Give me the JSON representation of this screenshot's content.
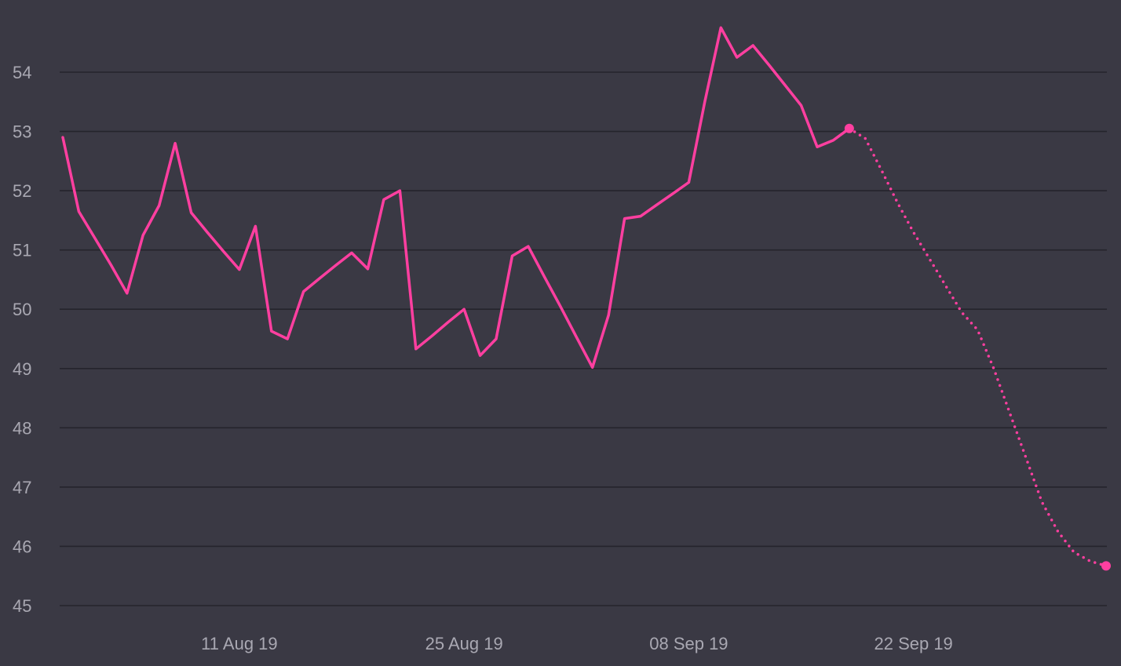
{
  "colors": {
    "background": "#3a3944",
    "series": "#ff3fa0",
    "grid": "#25242c",
    "tick_text": "#a9a8b2"
  },
  "chart_data": {
    "type": "line",
    "title": "",
    "xlabel": "",
    "ylabel": "",
    "ylim": [
      45,
      54.9
    ],
    "xlim": [
      "2019-07-31",
      "2019-10-04"
    ],
    "grid": true,
    "y_ticks": [
      "45",
      "46",
      "47",
      "48",
      "49",
      "50",
      "51",
      "52",
      "53",
      "54"
    ],
    "x_ticks": [
      {
        "date": "2019-08-11",
        "label": "11 Aug 19"
      },
      {
        "date": "2019-08-25",
        "label": "25 Aug 19"
      },
      {
        "date": "2019-09-08",
        "label": "08 Sep 19"
      },
      {
        "date": "2019-09-22",
        "label": "22 Sep 19"
      }
    ],
    "series": [
      {
        "style": "solid",
        "points": [
          [
            "2019-07-31",
            52.9
          ],
          [
            "2019-08-01",
            51.65
          ],
          [
            "2019-08-02",
            51.2
          ],
          [
            "2019-08-03",
            50.75
          ],
          [
            "2019-08-04",
            50.27
          ],
          [
            "2019-08-05",
            51.25
          ],
          [
            "2019-08-06",
            51.75
          ],
          [
            "2019-08-07",
            52.8
          ],
          [
            "2019-08-08",
            51.63
          ],
          [
            "2019-08-09",
            51.3
          ],
          [
            "2019-08-10",
            50.98
          ],
          [
            "2019-08-11",
            50.67
          ],
          [
            "2019-08-12",
            51.4
          ],
          [
            "2019-08-13",
            49.63
          ],
          [
            "2019-08-14",
            49.5
          ],
          [
            "2019-08-15",
            50.3
          ],
          [
            "2019-08-16",
            50.52
          ],
          [
            "2019-08-17",
            50.74
          ],
          [
            "2019-08-18",
            50.95
          ],
          [
            "2019-08-19",
            50.68
          ],
          [
            "2019-08-20",
            51.85
          ],
          [
            "2019-08-21",
            52.0
          ],
          [
            "2019-08-22",
            49.33
          ],
          [
            "2019-08-23",
            49.55
          ],
          [
            "2019-08-24",
            49.78
          ],
          [
            "2019-08-25",
            50.0
          ],
          [
            "2019-08-26",
            49.22
          ],
          [
            "2019-08-27",
            49.5
          ],
          [
            "2019-08-28",
            50.9
          ],
          [
            "2019-08-29",
            51.06
          ],
          [
            "2019-08-30",
            50.55
          ],
          [
            "2019-08-31",
            50.05
          ],
          [
            "2019-09-01",
            49.53
          ],
          [
            "2019-09-02",
            49.02
          ],
          [
            "2019-09-03",
            49.9
          ],
          [
            "2019-09-04",
            51.53
          ],
          [
            "2019-09-05",
            51.57
          ],
          [
            "2019-09-06",
            51.76
          ],
          [
            "2019-09-07",
            51.95
          ],
          [
            "2019-09-08",
            52.14
          ],
          [
            "2019-09-09",
            53.5
          ],
          [
            "2019-09-10",
            54.75
          ],
          [
            "2019-09-11",
            54.25
          ],
          [
            "2019-09-12",
            54.45
          ],
          [
            "2019-09-13",
            54.12
          ],
          [
            "2019-09-14",
            53.78
          ],
          [
            "2019-09-15",
            53.44
          ],
          [
            "2019-09-16",
            52.74
          ],
          [
            "2019-09-17",
            52.85
          ],
          [
            "2019-09-18",
            53.05
          ]
        ]
      },
      {
        "style": "dotted",
        "points": [
          [
            "2019-09-18",
            53.05
          ],
          [
            "2019-09-19",
            52.88
          ],
          [
            "2019-09-20",
            52.35
          ],
          [
            "2019-09-21",
            51.8
          ],
          [
            "2019-09-22",
            51.3
          ],
          [
            "2019-09-23",
            50.85
          ],
          [
            "2019-09-24",
            50.4
          ],
          [
            "2019-09-25",
            49.95
          ],
          [
            "2019-09-26",
            49.65
          ],
          [
            "2019-09-27",
            49.0
          ],
          [
            "2019-09-28",
            48.25
          ],
          [
            "2019-09-29",
            47.5
          ],
          [
            "2019-09-30",
            46.75
          ],
          [
            "2019-10-01",
            46.25
          ],
          [
            "2019-10-02",
            45.9
          ],
          [
            "2019-10-03",
            45.75
          ],
          [
            "2019-10-04",
            45.67
          ]
        ]
      }
    ]
  }
}
